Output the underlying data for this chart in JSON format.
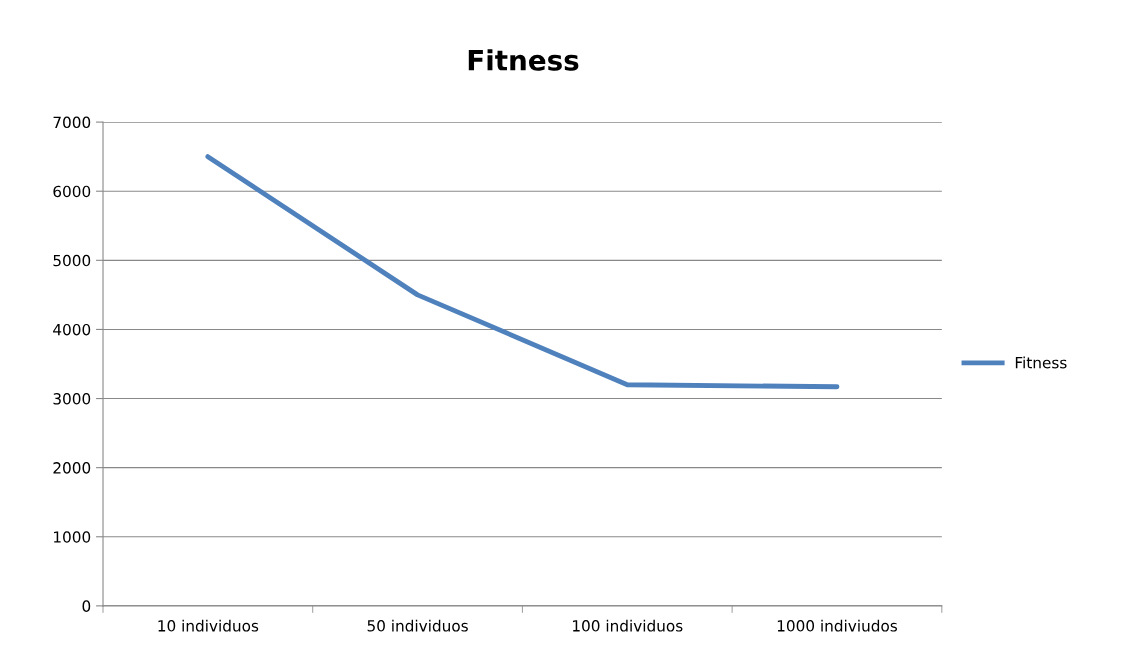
{
  "chart_data": {
    "type": "line",
    "title": "Fitness",
    "categories": [
      "10 individuos",
      "50 individuos",
      "100 individuos",
      "1000 indiviudos"
    ],
    "series": [
      {
        "name": "Fitness",
        "color": "#4f81bd",
        "values": [
          6500,
          4500,
          3200,
          3170
        ]
      }
    ],
    "ylim": [
      0,
      7000
    ],
    "yticks": [
      0,
      1000,
      2000,
      3000,
      4000,
      5000,
      6000,
      7000
    ],
    "grid": "y",
    "legend": "right",
    "marker": "none",
    "line_style": "solid"
  }
}
